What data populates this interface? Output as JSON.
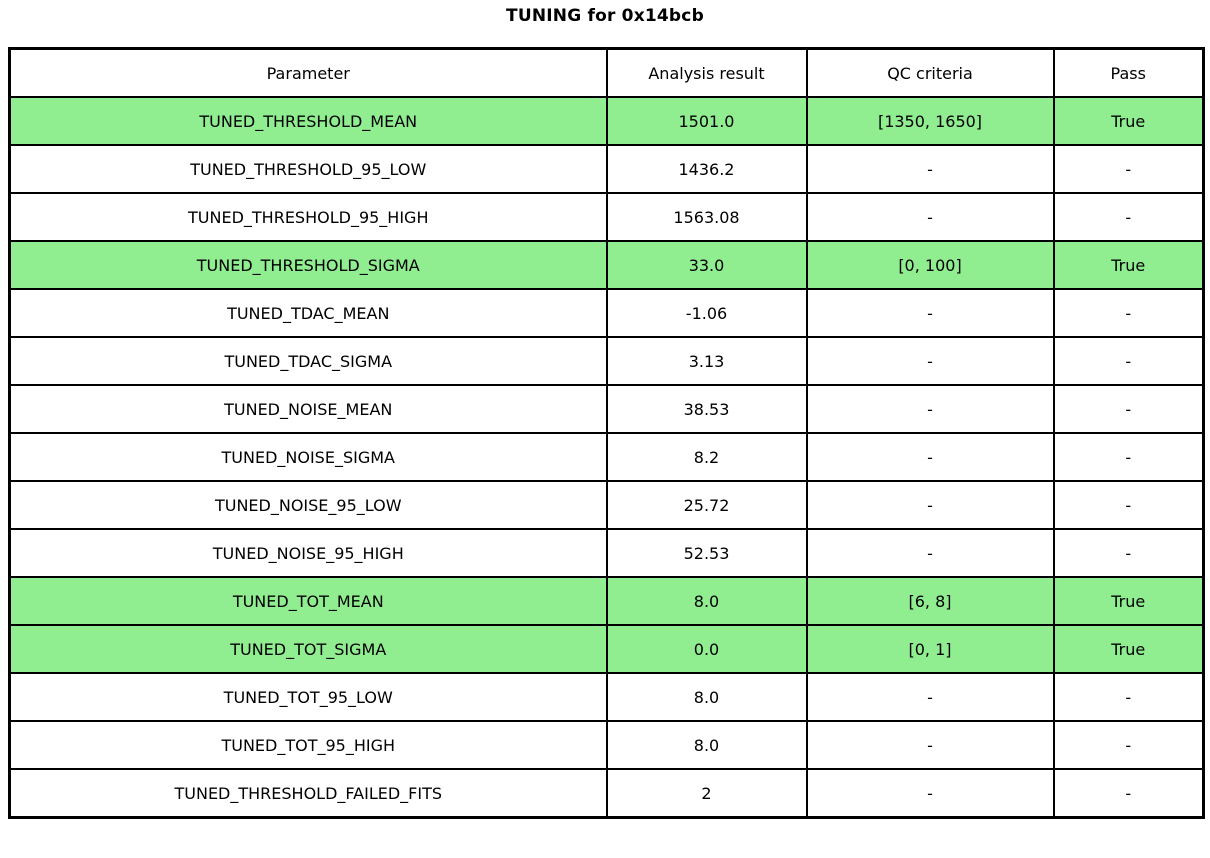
{
  "colors": {
    "highlight_green": "#90ee90",
    "border": "#000000",
    "background": "#ffffff",
    "text": "#000000"
  },
  "chart_data": {
    "type": "table",
    "title": "TUNING for 0x14bcb",
    "columns": [
      "Parameter",
      "Analysis result",
      "QC criteria",
      "Pass"
    ],
    "rows": [
      {
        "cells": [
          "TUNED_THRESHOLD_MEAN",
          "1501.0",
          "[1350, 1650]",
          "True"
        ],
        "highlight": true
      },
      {
        "cells": [
          "TUNED_THRESHOLD_95_LOW",
          "1436.2",
          "-",
          "-"
        ],
        "highlight": false
      },
      {
        "cells": [
          "TUNED_THRESHOLD_95_HIGH",
          "1563.08",
          "-",
          "-"
        ],
        "highlight": false
      },
      {
        "cells": [
          "TUNED_THRESHOLD_SIGMA",
          "33.0",
          "[0, 100]",
          "True"
        ],
        "highlight": true
      },
      {
        "cells": [
          "TUNED_TDAC_MEAN",
          "-1.06",
          "-",
          "-"
        ],
        "highlight": false
      },
      {
        "cells": [
          "TUNED_TDAC_SIGMA",
          "3.13",
          "-",
          "-"
        ],
        "highlight": false
      },
      {
        "cells": [
          "TUNED_NOISE_MEAN",
          "38.53",
          "-",
          "-"
        ],
        "highlight": false
      },
      {
        "cells": [
          "TUNED_NOISE_SIGMA",
          "8.2",
          "-",
          "-"
        ],
        "highlight": false
      },
      {
        "cells": [
          "TUNED_NOISE_95_LOW",
          "25.72",
          "-",
          "-"
        ],
        "highlight": false
      },
      {
        "cells": [
          "TUNED_NOISE_95_HIGH",
          "52.53",
          "-",
          "-"
        ],
        "highlight": false
      },
      {
        "cells": [
          "TUNED_TOT_MEAN",
          "8.0",
          "[6, 8]",
          "True"
        ],
        "highlight": true
      },
      {
        "cells": [
          "TUNED_TOT_SIGMA",
          "0.0",
          "[0, 1]",
          "True"
        ],
        "highlight": true
      },
      {
        "cells": [
          "TUNED_TOT_95_LOW",
          "8.0",
          "-",
          "-"
        ],
        "highlight": false
      },
      {
        "cells": [
          "TUNED_TOT_95_HIGH",
          "8.0",
          "-",
          "-"
        ],
        "highlight": false
      },
      {
        "cells": [
          "TUNED_THRESHOLD_FAILED_FITS",
          "2",
          "-",
          "-"
        ],
        "highlight": false
      }
    ]
  }
}
